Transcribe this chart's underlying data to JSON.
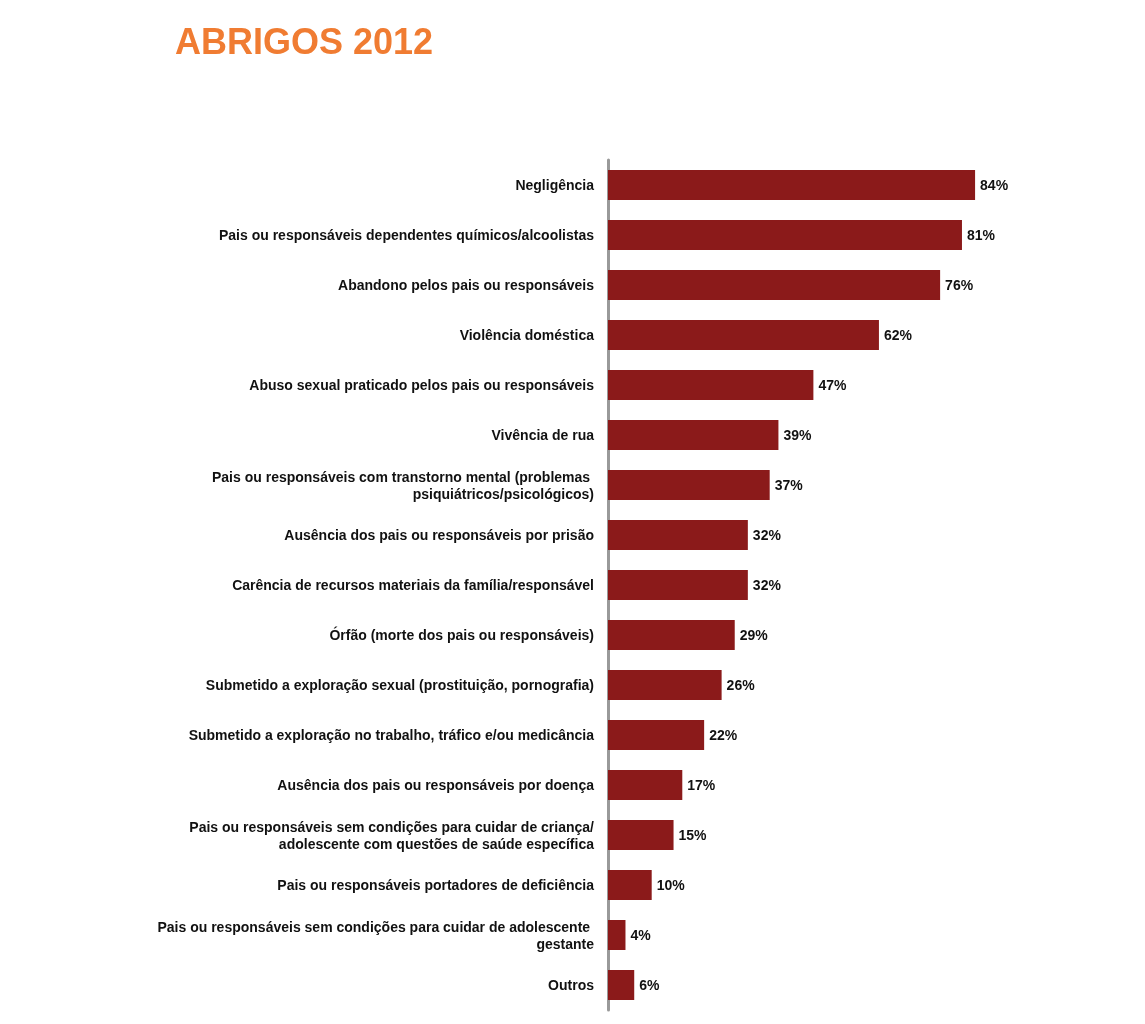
{
  "chart_data": {
    "type": "bar",
    "orientation": "horizontal",
    "title": "ABRIGOS 2012",
    "categories": [
      "Negligência",
      "Pais ou responsáveis dependentes químicos/alcoolistas",
      "Abandono pelos pais ou responsáveis",
      "Violência doméstica",
      "Abuso sexual praticado pelos pais ou responsáveis",
      "Vivência de rua",
      "Pais ou responsáveis com transtorno mental (problemas psiquiátricos/psicológicos)",
      "Ausência dos pais ou responsáveis por prisão",
      "Carência de recursos materiais da família/responsável",
      "Órfão (morte dos pais ou responsáveis)",
      "Submetido a exploração sexual (prostituição, pornografia)",
      "Submetido a exploração no trabalho, tráfico e/ou medicância",
      "Ausência dos pais ou responsáveis por doença",
      "Pais ou responsáveis sem condições para cuidar de criança/adolescente com questões de saúde específica",
      "Pais ou responsáveis portadores de deficiência",
      "Pais ou responsáveis sem condições para cuidar de adolescente gestante",
      "Outros"
    ],
    "series": [
      {
        "color": "#8b1a1a",
        "values": [
          84,
          81,
          76,
          62,
          47,
          39,
          37,
          32,
          32,
          29,
          26,
          22,
          17,
          15,
          10,
          4,
          6
        ],
        "value_labels": [
          "84%",
          "81%",
          "76%",
          "62%",
          "47%",
          "39%",
          "37%",
          "32%",
          "32%",
          "29%",
          "26%",
          "22%",
          "17%",
          "15%",
          "10%",
          "4%",
          "6%"
        ]
      }
    ]
  }
}
